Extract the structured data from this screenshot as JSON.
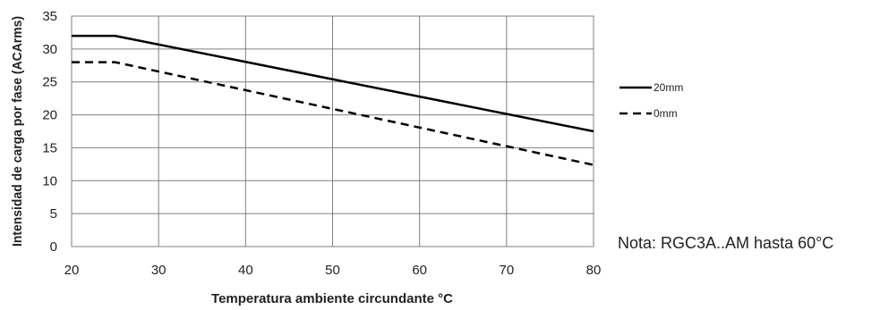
{
  "chart_data": {
    "type": "line",
    "xlabel": "Temperatura ambiente circundante °C",
    "ylabel": "Intensidad de carga por fase (ACArms)",
    "xlim": [
      20,
      80
    ],
    "ylim": [
      0,
      35
    ],
    "xticks": [
      20,
      30,
      40,
      50,
      60,
      70,
      80
    ],
    "yticks": [
      0,
      5,
      10,
      15,
      20,
      25,
      30,
      35
    ],
    "grid": true,
    "legend_position": "right",
    "series": [
      {
        "name": "20mm",
        "style": "solid",
        "color": "#000000",
        "points": [
          [
            20,
            32
          ],
          [
            25,
            32
          ],
          [
            80,
            17.5
          ]
        ]
      },
      {
        "name": "0mm",
        "style": "dashed",
        "color": "#000000",
        "points": [
          [
            20,
            28
          ],
          [
            25,
            28
          ],
          [
            80,
            12.4
          ]
        ]
      }
    ]
  },
  "note": "Nota: RGC3A..AM hasta 60°C"
}
